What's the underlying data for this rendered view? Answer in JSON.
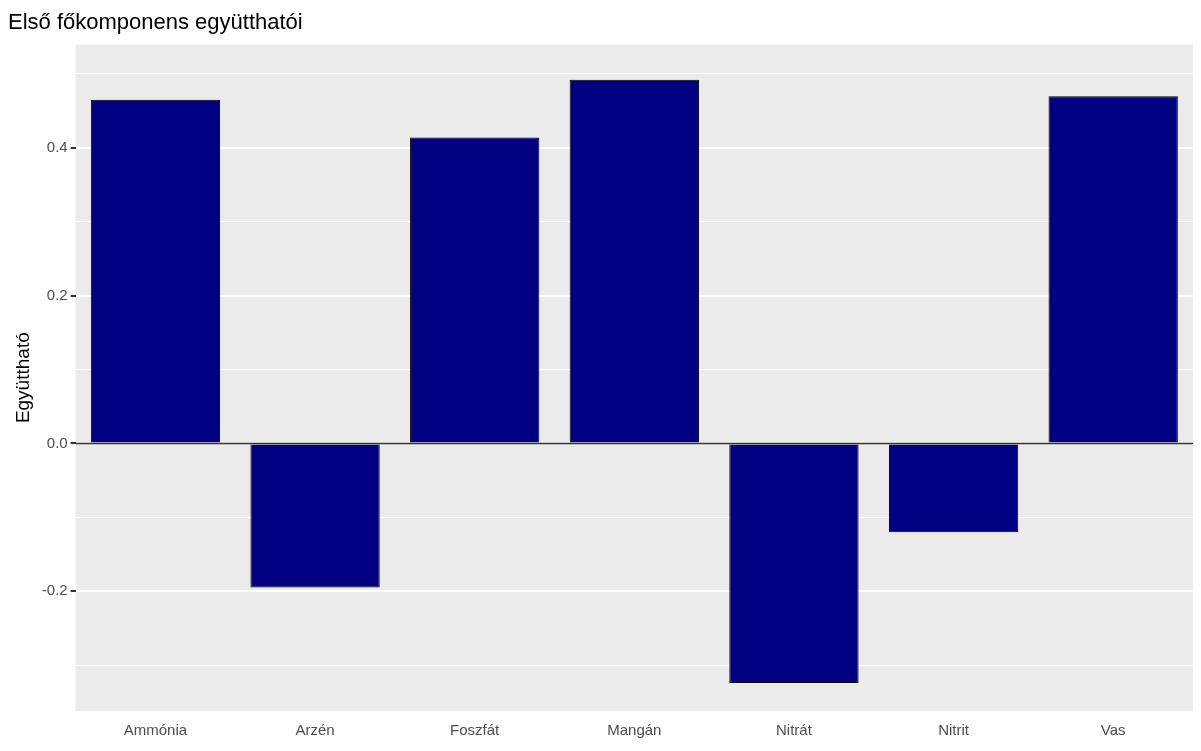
{
  "chart_data": {
    "type": "bar",
    "title": "Első főkomponens együtthatói",
    "ylabel": "Együttható",
    "categories": [
      "Ammónia",
      "Arzén",
      "Foszfát",
      "Mangán",
      "Nitrát",
      "Nitrit",
      "Vas"
    ],
    "values": [
      0.465,
      -0.195,
      0.414,
      0.492,
      -0.324,
      -0.12,
      0.47
    ],
    "color": "#000080",
    "ylim": [
      -0.362,
      0.54
    ],
    "yticks": [
      {
        "value": -0.3,
        "label": null
      },
      -0.2,
      {
        "value": -0.1,
        "label": null
      },
      {
        "value": 0,
        "label": "0.0"
      },
      {
        "value": 0.1,
        "label": null
      },
      0.2,
      {
        "value": 0.3,
        "label": null
      },
      0.4,
      {
        "value": 0.5,
        "label": null
      }
    ],
    "ref_lines": [
      {
        "axis": "y",
        "value": 0,
        "color": "#333333"
      }
    ],
    "grid": "y"
  }
}
